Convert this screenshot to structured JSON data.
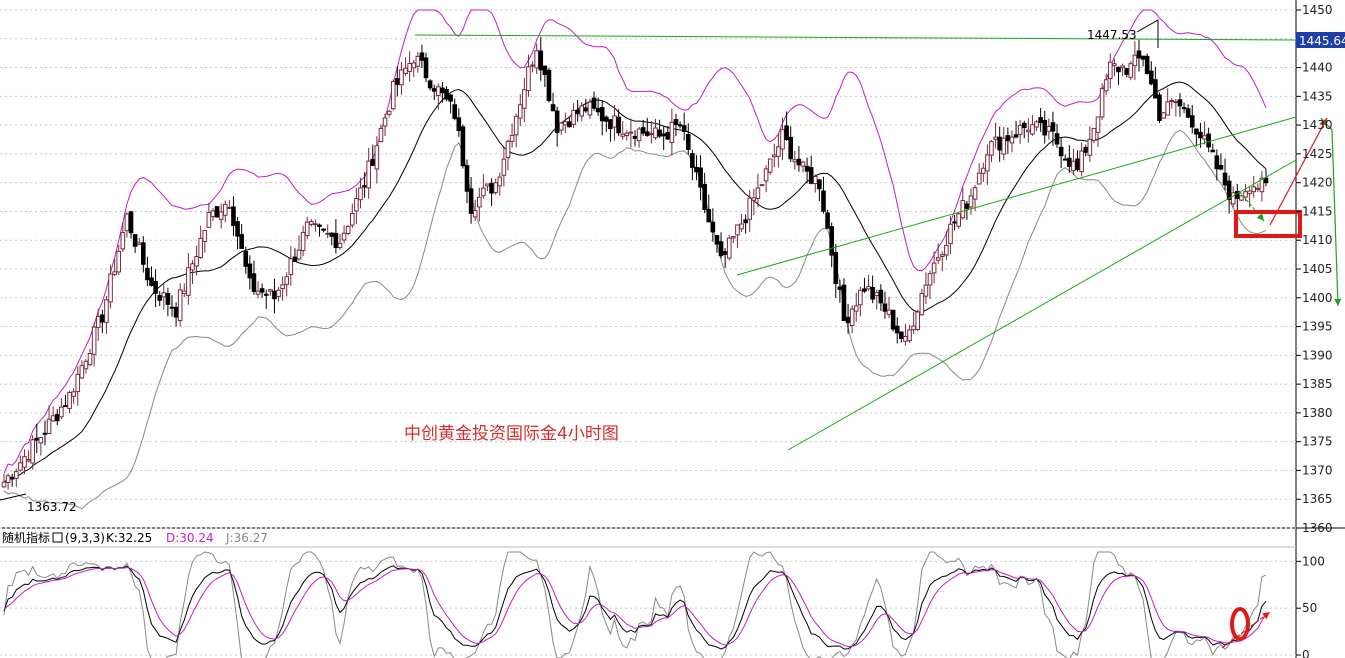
{
  "chart_data": [
    {
      "type": "candlestick",
      "title": "中创黄金投资国际金4小时图",
      "ylim": [
        1360,
        1450
      ],
      "y_ticks": [
        "1450",
        "1445",
        "1440",
        "1435",
        "1430",
        "1425",
        "1420",
        "1415",
        "1410",
        "1405",
        "1400",
        "1395",
        "1390",
        "1385",
        "1380",
        "1375",
        "1370",
        "1365",
        "1360"
      ],
      "current_price": "1445.64",
      "annotations": {
        "high_label": "1447.53",
        "low_label": "1363.72"
      },
      "colors": {
        "up": "#7a2a3a",
        "down": "#000000",
        "upper_band": "#c21ec2",
        "middle_band": "#000000",
        "lower_band": "#888888",
        "trendline": "#1aa51a",
        "marker": "#e01818"
      },
      "close_waypoints": [
        [
          0,
          1368
        ],
        [
          8,
          1375
        ],
        [
          16,
          1383
        ],
        [
          24,
          1397
        ],
        [
          30,
          1414
        ],
        [
          36,
          1402
        ],
        [
          42,
          1398
        ],
        [
          50,
          1414
        ],
        [
          55,
          1417
        ],
        [
          60,
          1402
        ],
        [
          66,
          1400
        ],
        [
          74,
          1412
        ],
        [
          82,
          1410
        ],
        [
          88,
          1420
        ],
        [
          95,
          1436
        ],
        [
          100,
          1442
        ],
        [
          105,
          1437
        ],
        [
          110,
          1432
        ],
        [
          114,
          1416
        ],
        [
          120,
          1420
        ],
        [
          125,
          1432
        ],
        [
          130,
          1444
        ],
        [
          135,
          1430
        ],
        [
          142,
          1433
        ],
        [
          150,
          1430
        ],
        [
          160,
          1428
        ],
        [
          165,
          1430
        ],
        [
          170,
          1418
        ],
        [
          175,
          1406
        ],
        [
          180,
          1413
        ],
        [
          185,
          1420
        ],
        [
          190,
          1428
        ],
        [
          195,
          1422
        ],
        [
          199,
          1420
        ],
        [
          205,
          1396
        ],
        [
          210,
          1402
        ],
        [
          215,
          1398
        ],
        [
          220,
          1392
        ],
        [
          225,
          1403
        ],
        [
          231,
          1412
        ],
        [
          236,
          1418
        ],
        [
          240,
          1426
        ],
        [
          245,
          1428
        ],
        [
          250,
          1430
        ],
        [
          256,
          1428
        ],
        [
          262,
          1422
        ],
        [
          266,
          1430
        ],
        [
          270,
          1440
        ],
        [
          275,
          1440
        ],
        [
          278,
          1442
        ],
        [
          282,
          1432
        ],
        [
          286,
          1434
        ],
        [
          290,
          1431
        ],
        [
          295,
          1424
        ],
        [
          300,
          1417
        ],
        [
          304,
          1420
        ],
        [
          308,
          1419
        ]
      ],
      "stochastic": {
        "name": "随机指标",
        "params": "(9,3,3)",
        "k": "K:32.25",
        "d": "D:30.24",
        "j": "J:36.27",
        "ylim": [
          0,
          110
        ],
        "y_ticks": [
          "100",
          "50",
          "0"
        ]
      }
    }
  ]
}
